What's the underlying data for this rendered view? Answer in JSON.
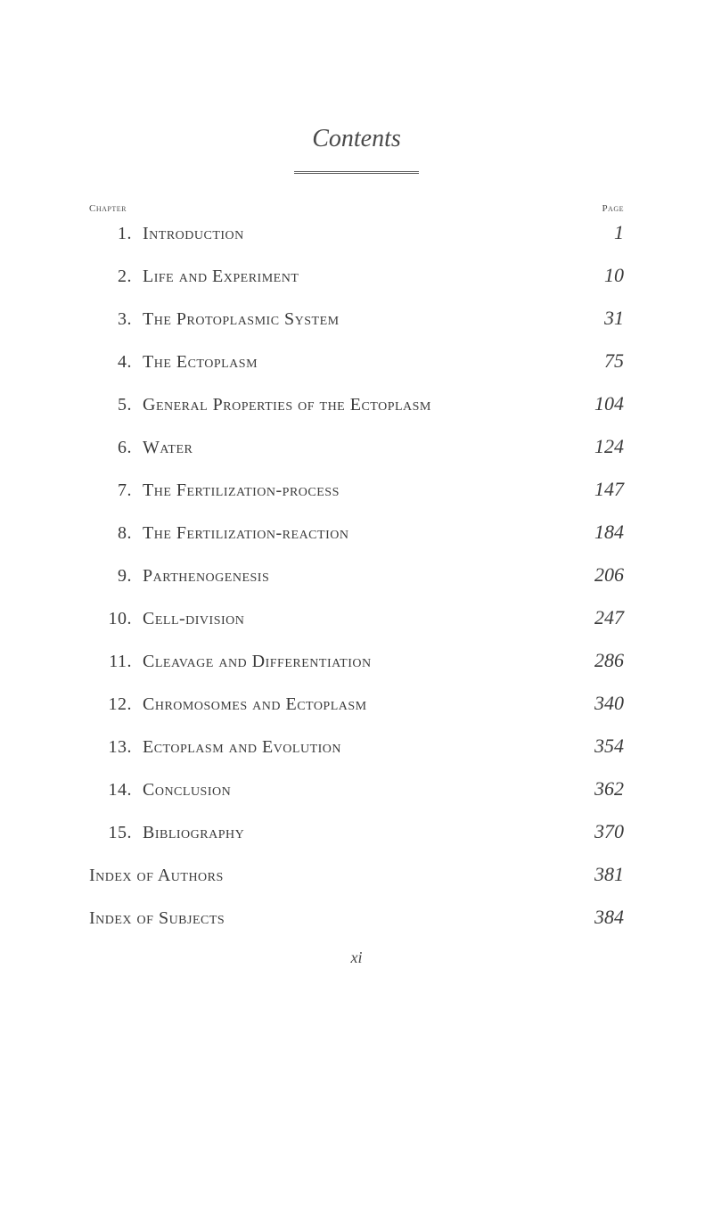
{
  "title": "Contents",
  "header": {
    "chapter_label": "Chapter",
    "page_label": "Page"
  },
  "entries": [
    {
      "num": "1.",
      "title": "Introduction",
      "page": "1"
    },
    {
      "num": "2.",
      "title": "Life and Experiment",
      "page": "10"
    },
    {
      "num": "3.",
      "title": "The Protoplasmic System",
      "page": "31"
    },
    {
      "num": "4.",
      "title": "The Ectoplasm",
      "page": "75"
    },
    {
      "num": "5.",
      "title": "General Properties of the Ectoplasm",
      "page": "104"
    },
    {
      "num": "6.",
      "title": "Water",
      "page": "124"
    },
    {
      "num": "7.",
      "title": "The Fertilization-process",
      "page": "147"
    },
    {
      "num": "8.",
      "title": "The Fertilization-reaction",
      "page": "184"
    },
    {
      "num": "9.",
      "title": "Parthenogenesis",
      "page": "206"
    },
    {
      "num": "10.",
      "title": "Cell-division",
      "page": "247"
    },
    {
      "num": "11.",
      "title": "Cleavage and Differentiation",
      "page": "286"
    },
    {
      "num": "12.",
      "title": "Chromosomes and Ectoplasm",
      "page": "340"
    },
    {
      "num": "13.",
      "title": "Ectoplasm and Evolution",
      "page": "354"
    },
    {
      "num": "14.",
      "title": "Conclusion",
      "page": "362"
    },
    {
      "num": "15.",
      "title": "Bibliography",
      "page": "370"
    }
  ],
  "index_entries": [
    {
      "title": "Index of Authors",
      "page": "381"
    },
    {
      "title": "Index of Subjects",
      "page": "384"
    }
  ],
  "footer": "xi",
  "styling": {
    "background_color": "#ffffff",
    "text_color": "#3a3a3a",
    "title_fontsize": 28,
    "entry_fontsize": 20,
    "page_num_fontsize": 22,
    "header_fontsize": 11,
    "footer_fontsize": 18,
    "divider_width": 140,
    "divider_color": "#5a5a5a",
    "entry_spacing": 22
  }
}
